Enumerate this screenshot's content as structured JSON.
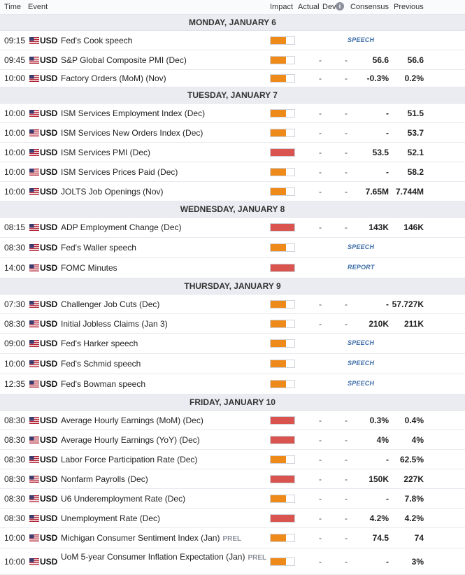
{
  "header": {
    "time": "Time",
    "event": "Event",
    "impact": "Impact",
    "actual": "Actual",
    "dev": "Dev",
    "info_icon": "i",
    "consensus": "Consensus",
    "previous": "Previous"
  },
  "colors": {
    "high": "#d9534f",
    "medium": "#ee8a1a",
    "badge": "#3f6fa8",
    "day_bg": "#eaecf1"
  },
  "days": [
    {
      "label": "MONDAY, JANUARY 6",
      "events": [
        {
          "time": "09:15",
          "currency": "USD",
          "event": "Fed's Cook speech",
          "tag": "",
          "impact": "medium",
          "actual": "",
          "dev": "",
          "consensus": "",
          "previous": "",
          "badge": "SPEECH"
        },
        {
          "time": "09:45",
          "currency": "USD",
          "event": "S&P Global Composite PMI (Dec)",
          "tag": "",
          "impact": "medium",
          "actual": "-",
          "dev": "-",
          "consensus": "56.6",
          "previous": "56.6",
          "badge": ""
        },
        {
          "time": "10:00",
          "currency": "USD",
          "event": "Factory Orders (MoM) (Nov)",
          "tag": "",
          "impact": "medium",
          "actual": "-",
          "dev": "-",
          "consensus": "-0.3%",
          "previous": "0.2%",
          "badge": ""
        }
      ]
    },
    {
      "label": "TUESDAY, JANUARY 7",
      "events": [
        {
          "time": "10:00",
          "currency": "USD",
          "event": "ISM Services Employment Index (Dec)",
          "tag": "",
          "impact": "medium",
          "actual": "-",
          "dev": "-",
          "consensus": "-",
          "previous": "51.5",
          "badge": ""
        },
        {
          "time": "10:00",
          "currency": "USD",
          "event": "ISM Services New Orders Index (Dec)",
          "tag": "",
          "impact": "medium",
          "actual": "-",
          "dev": "-",
          "consensus": "-",
          "previous": "53.7",
          "badge": ""
        },
        {
          "time": "10:00",
          "currency": "USD",
          "event": "ISM Services PMI (Dec)",
          "tag": "",
          "impact": "high",
          "actual": "-",
          "dev": "-",
          "consensus": "53.5",
          "previous": "52.1",
          "badge": ""
        },
        {
          "time": "10:00",
          "currency": "USD",
          "event": "ISM Services Prices Paid (Dec)",
          "tag": "",
          "impact": "medium",
          "actual": "-",
          "dev": "-",
          "consensus": "-",
          "previous": "58.2",
          "badge": ""
        },
        {
          "time": "10:00",
          "currency": "USD",
          "event": "JOLTS Job Openings (Nov)",
          "tag": "",
          "impact": "medium",
          "actual": "-",
          "dev": "-",
          "consensus": "7.65M",
          "previous": "7.744M",
          "badge": ""
        }
      ]
    },
    {
      "label": "WEDNESDAY, JANUARY 8",
      "events": [
        {
          "time": "08:15",
          "currency": "USD",
          "event": "ADP Employment Change (Dec)",
          "tag": "",
          "impact": "high",
          "actual": "-",
          "dev": "-",
          "consensus": "143K",
          "previous": "146K",
          "badge": ""
        },
        {
          "time": "08:30",
          "currency": "USD",
          "event": "Fed's Waller speech",
          "tag": "",
          "impact": "medium",
          "actual": "",
          "dev": "",
          "consensus": "",
          "previous": "",
          "badge": "SPEECH"
        },
        {
          "time": "14:00",
          "currency": "USD",
          "event": "FOMC Minutes",
          "tag": "",
          "impact": "high",
          "actual": "",
          "dev": "",
          "consensus": "",
          "previous": "",
          "badge": "REPORT"
        }
      ]
    },
    {
      "label": "THURSDAY, JANUARY 9",
      "events": [
        {
          "time": "07:30",
          "currency": "USD",
          "event": "Challenger Job Cuts (Dec)",
          "tag": "",
          "impact": "medium",
          "actual": "-",
          "dev": "-",
          "consensus": "-",
          "previous": "57.727K",
          "badge": ""
        },
        {
          "time": "08:30",
          "currency": "USD",
          "event": "Initial Jobless Claims (Jan 3)",
          "tag": "",
          "impact": "medium",
          "actual": "-",
          "dev": "-",
          "consensus": "210K",
          "previous": "211K",
          "badge": ""
        },
        {
          "time": "09:00",
          "currency": "USD",
          "event": "Fed's Harker speech",
          "tag": "",
          "impact": "medium",
          "actual": "",
          "dev": "",
          "consensus": "",
          "previous": "",
          "badge": "SPEECH"
        },
        {
          "time": "10:00",
          "currency": "USD",
          "event": "Fed's Schmid speech",
          "tag": "",
          "impact": "medium",
          "actual": "",
          "dev": "",
          "consensus": "",
          "previous": "",
          "badge": "SPEECH"
        },
        {
          "time": "12:35",
          "currency": "USD",
          "event": "Fed's Bowman speech",
          "tag": "",
          "impact": "medium",
          "actual": "",
          "dev": "",
          "consensus": "",
          "previous": "",
          "badge": "SPEECH"
        }
      ]
    },
    {
      "label": "FRIDAY, JANUARY 10",
      "events": [
        {
          "time": "08:30",
          "currency": "USD",
          "event": "Average Hourly Earnings (MoM) (Dec)",
          "tag": "",
          "impact": "high",
          "actual": "-",
          "dev": "-",
          "consensus": "0.3%",
          "previous": "0.4%",
          "badge": ""
        },
        {
          "time": "08:30",
          "currency": "USD",
          "event": "Average Hourly Earnings (YoY) (Dec)",
          "tag": "",
          "impact": "high",
          "actual": "-",
          "dev": "-",
          "consensus": "4%",
          "previous": "4%",
          "badge": ""
        },
        {
          "time": "08:30",
          "currency": "USD",
          "event": "Labor Force Participation Rate (Dec)",
          "tag": "",
          "impact": "medium",
          "actual": "-",
          "dev": "-",
          "consensus": "-",
          "previous": "62.5%",
          "badge": ""
        },
        {
          "time": "08:30",
          "currency": "USD",
          "event": "Nonfarm Payrolls (Dec)",
          "tag": "",
          "impact": "high",
          "actual": "-",
          "dev": "-",
          "consensus": "150K",
          "previous": "227K",
          "badge": ""
        },
        {
          "time": "08:30",
          "currency": "USD",
          "event": "U6 Underemployment Rate (Dec)",
          "tag": "",
          "impact": "medium",
          "actual": "-",
          "dev": "-",
          "consensus": "-",
          "previous": "7.8%",
          "badge": ""
        },
        {
          "time": "08:30",
          "currency": "USD",
          "event": "Unemployment Rate (Dec)",
          "tag": "",
          "impact": "high",
          "actual": "-",
          "dev": "-",
          "consensus": "4.2%",
          "previous": "4.2%",
          "badge": ""
        },
        {
          "time": "10:00",
          "currency": "USD",
          "event": "Michigan Consumer Sentiment Index (Jan)",
          "tag": "PREL",
          "impact": "medium",
          "actual": "-",
          "dev": "-",
          "consensus": "74.5",
          "previous": "74",
          "badge": ""
        },
        {
          "time": "10:00",
          "currency": "USD",
          "event": "UoM 5-year Consumer Inflation Expectation (Jan)",
          "tag": "PREL",
          "impact": "medium",
          "actual": "-",
          "dev": "-",
          "consensus": "-",
          "previous": "3%",
          "badge": ""
        }
      ]
    }
  ]
}
